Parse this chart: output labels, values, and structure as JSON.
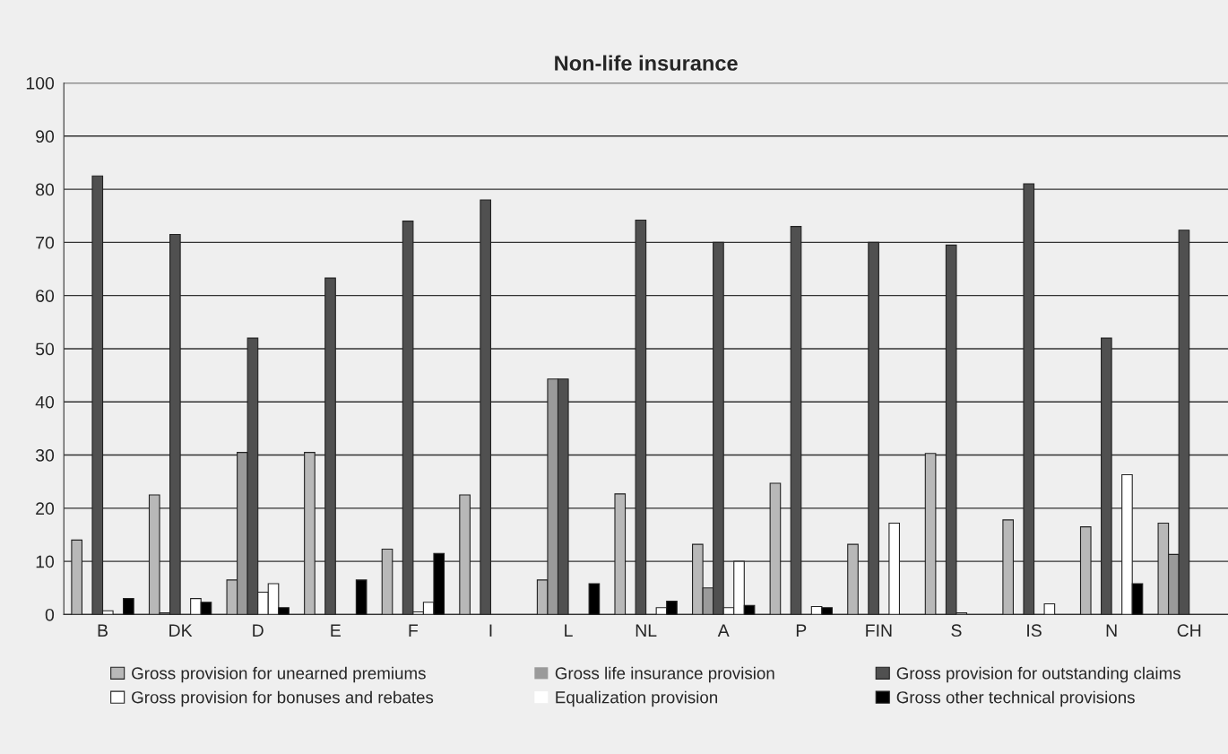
{
  "chart_data": {
    "type": "bar",
    "title": "Non-life insurance",
    "categories": [
      "B",
      "DK",
      "D",
      "E",
      "F",
      "I",
      "L",
      "NL",
      "A",
      "P",
      "FIN",
      "S",
      "IS",
      "N",
      "CH"
    ],
    "series": [
      {
        "name": "Gross provision for unearned premiums",
        "color": "#b8b8b8",
        "values": [
          14,
          22.5,
          6.5,
          30.5,
          12.3,
          22.5,
          6.5,
          22.7,
          13.2,
          24.7,
          13.2,
          30.3,
          17.8,
          16.5,
          17.2
        ]
      },
      {
        "name": "Gross life insurance provision",
        "color": "#9a9a9a",
        "values": [
          0,
          0.3,
          30.5,
          0,
          0,
          0,
          44.3,
          0,
          5,
          0,
          0,
          0,
          0,
          0,
          11.3
        ]
      },
      {
        "name": "Gross provision for outstanding claims",
        "color": "#505050",
        "values": [
          82.5,
          71.5,
          52,
          63.3,
          74,
          78,
          44.3,
          74.2,
          70,
          73,
          70,
          69.5,
          81,
          52,
          72.3
        ]
      },
      {
        "name": "Gross provision for bonuses and rebates",
        "color": "#ffffff",
        "values": [
          0.7,
          0,
          4.2,
          0,
          0.5,
          0,
          0,
          0,
          1.3,
          0,
          0,
          0.3,
          0,
          0,
          0
        ]
      },
      {
        "name": "Equalization provision",
        "color": "#ffffff",
        "values": [
          0,
          3,
          5.8,
          0,
          2.3,
          0,
          0,
          1.3,
          10,
          1.5,
          17.2,
          0,
          2,
          26.3,
          0
        ]
      },
      {
        "name": "Gross other technical provisions",
        "color": "#000000",
        "values": [
          3,
          2.3,
          1.3,
          6.5,
          11.5,
          0,
          5.8,
          2.5,
          1.7,
          1.3,
          0,
          0,
          0,
          5.8,
          0
        ]
      }
    ],
    "ylim": [
      0,
      100
    ],
    "yticks": [
      0,
      10,
      20,
      30,
      40,
      50,
      60,
      70,
      80,
      90,
      100
    ],
    "grid": "y",
    "legend": "bottom"
  }
}
